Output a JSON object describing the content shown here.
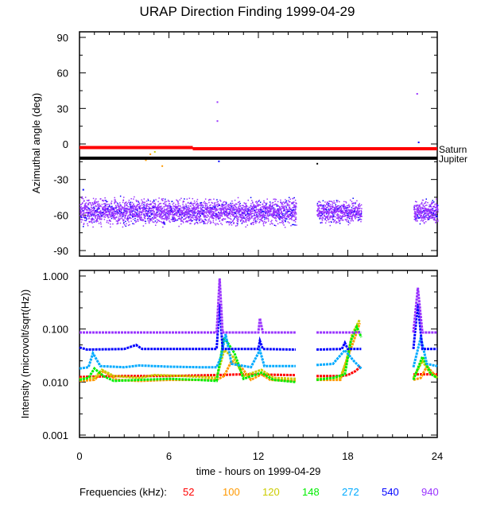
{
  "chart_data": [
    {
      "type": "scatter",
      "title": "URAP Direction Finding  1999-04-29",
      "ylabel": "Azimuthal angle (deg)",
      "xlim": [
        0,
        24
      ],
      "ylim": [
        -90,
        90
      ],
      "yticks": [
        "90",
        "60",
        "30",
        "0",
        "-30",
        "-60",
        "-90"
      ],
      "ytick_values": [
        90,
        60,
        30,
        0,
        -30,
        -60,
        -90
      ],
      "reference_lines": [
        {
          "name": "Saturn",
          "color": "#ff0000",
          "segments": [
            [
              0,
              7.6,
              -3
            ],
            [
              7.6,
              24,
              -4
            ]
          ]
        },
        {
          "name": "Jupiter",
          "color": "#000000",
          "segments": [
            [
              0,
              24,
              -12
            ]
          ]
        }
      ],
      "clusters": [
        {
          "frequency": "940",
          "color": "#9933ff",
          "start": 0,
          "end": 14.5,
          "mean": -57,
          "spread": 7
        },
        {
          "frequency": "940",
          "color": "#9933ff",
          "start": 15.9,
          "end": 18.9,
          "mean": -57,
          "spread": 6
        },
        {
          "frequency": "940",
          "color": "#9933ff",
          "start": 22.4,
          "end": 24,
          "mean": -57,
          "spread": 6
        }
      ],
      "outliers": [
        {
          "x": 9.2,
          "y": 36,
          "color": "#9933ff"
        },
        {
          "x": 9.2,
          "y": 20,
          "color": "#9933ff"
        },
        {
          "x": 9.3,
          "y": -14,
          "color": "#0000ff"
        },
        {
          "x": 22.6,
          "y": 43,
          "color": "#9933ff"
        },
        {
          "x": 22.7,
          "y": 2,
          "color": "#0000ff"
        },
        {
          "x": 4.4,
          "y": -13,
          "color": "#ff9900"
        },
        {
          "x": 4.7,
          "y": -8,
          "color": "#ff9900"
        },
        {
          "x": 5.0,
          "y": -6,
          "color": "#cccc00"
        },
        {
          "x": 5.5,
          "y": -18,
          "color": "#ff9900"
        },
        {
          "x": 15.9,
          "y": -16,
          "color": "#000000"
        },
        {
          "x": 0.2,
          "y": -38,
          "color": "#0000ff"
        }
      ]
    },
    {
      "type": "line",
      "ylabel": "Intensity (microvolt/sqrt(Hz))",
      "xlabel": "time - hours on 1999-04-29",
      "xlim": [
        0,
        24
      ],
      "xticks": [
        "0",
        "6",
        "12",
        "18",
        "24"
      ],
      "xtick_values": [
        0,
        6,
        12,
        18,
        24
      ],
      "yscale": "log",
      "ylim": [
        0.001,
        1.0
      ],
      "yticks": [
        "1.000",
        "0.100",
        "0.010",
        "0.001"
      ],
      "ytick_values": [
        1.0,
        0.1,
        0.01,
        0.001
      ],
      "legend_title": "Frequencies (kHz):",
      "series": [
        {
          "name": "52",
          "color": "#ff0000",
          "points": [
            [
              0,
              0.0125
            ],
            [
              3,
              0.013
            ],
            [
              6,
              0.013
            ],
            [
              9,
              0.0135
            ],
            [
              11,
              0.014
            ],
            [
              14.5,
              0.0135
            ],
            null,
            [
              15.9,
              0.013
            ],
            [
              17.5,
              0.013
            ],
            [
              18.0,
              0.0135
            ],
            [
              18.5,
              0.016
            ],
            [
              18.9,
              0.02
            ],
            null,
            [
              22.4,
              0.014
            ],
            [
              24,
              0.014
            ]
          ]
        },
        {
          "name": "100",
          "color": "#ff9900",
          "points": [
            [
              0,
              0.0105
            ],
            [
              1.0,
              0.011
            ],
            [
              1.6,
              0.016
            ],
            [
              2.5,
              0.011
            ],
            [
              4,
              0.0105
            ],
            [
              6,
              0.011
            ],
            [
              8,
              0.011
            ],
            [
              9.2,
              0.011
            ],
            [
              9.7,
              0.013
            ],
            [
              10.2,
              0.025
            ],
            [
              10.8,
              0.02
            ],
            [
              11.5,
              0.011
            ],
            [
              12.2,
              0.014
            ],
            [
              12.8,
              0.011
            ],
            [
              14.5,
              0.0105
            ],
            null,
            [
              15.9,
              0.011
            ],
            [
              17.5,
              0.011
            ],
            [
              18.0,
              0.03
            ],
            [
              18.4,
              0.06
            ],
            [
              18.8,
              0.13
            ],
            null,
            [
              22.4,
              0.011
            ],
            [
              22.9,
              0.012
            ],
            [
              23.3,
              0.02
            ],
            [
              24,
              0.012
            ]
          ]
        },
        {
          "name": "120",
          "color": "#cccc00",
          "points": [
            [
              0,
              0.0115
            ],
            [
              1.0,
              0.012
            ],
            [
              1.5,
              0.017
            ],
            [
              2.3,
              0.013
            ],
            [
              4,
              0.012
            ],
            [
              5,
              0.0135
            ],
            [
              7,
              0.013
            ],
            [
              9.2,
              0.012
            ],
            [
              9.7,
              0.04
            ],
            [
              10.3,
              0.03
            ],
            [
              11,
              0.013
            ],
            [
              12.2,
              0.017
            ],
            [
              13,
              0.012
            ],
            [
              14.5,
              0.0115
            ],
            null,
            [
              15.9,
              0.0115
            ],
            [
              17.5,
              0.012
            ],
            [
              17.9,
              0.025
            ],
            [
              18.3,
              0.08
            ],
            [
              18.8,
              0.15
            ],
            null,
            [
              22.4,
              0.012
            ],
            [
              23.0,
              0.025
            ],
            [
              23.5,
              0.015
            ],
            [
              24,
              0.012
            ]
          ]
        },
        {
          "name": "148",
          "color": "#00ee00",
          "points": [
            [
              0,
              0.011
            ],
            [
              0.6,
              0.012
            ],
            [
              1.0,
              0.018
            ],
            [
              1.6,
              0.013
            ],
            [
              2.3,
              0.0105
            ],
            [
              4,
              0.011
            ],
            [
              6,
              0.0115
            ],
            [
              8,
              0.011
            ],
            [
              9.2,
              0.0105
            ],
            [
              9.7,
              0.07
            ],
            [
              10.4,
              0.035
            ],
            [
              11,
              0.0115
            ],
            [
              12.2,
              0.015
            ],
            [
              13,
              0.011
            ],
            [
              14.5,
              0.01
            ],
            null,
            [
              15.9,
              0.011
            ],
            [
              17,
              0.012
            ],
            [
              17.8,
              0.014
            ],
            [
              18.2,
              0.06
            ],
            [
              18.6,
              0.11
            ],
            [
              18.9,
              0.07
            ],
            null,
            [
              22.4,
              0.011
            ],
            [
              23.0,
              0.03
            ],
            [
              23.6,
              0.014
            ],
            [
              24,
              0.012
            ]
          ]
        },
        {
          "name": "272",
          "color": "#00aaff",
          "points": [
            [
              0,
              0.018
            ],
            [
              0.6,
              0.019
            ],
            [
              0.9,
              0.035
            ],
            [
              1.4,
              0.02
            ],
            [
              3,
              0.019
            ],
            [
              4,
              0.0205
            ],
            [
              6,
              0.0195
            ],
            [
              8,
              0.019
            ],
            [
              9.2,
              0.019
            ],
            [
              9.5,
              0.03
            ],
            [
              9.8,
              0.08
            ],
            [
              10.2,
              0.022
            ],
            [
              11.5,
              0.019
            ],
            [
              12.1,
              0.04
            ],
            [
              12.4,
              0.02
            ],
            [
              14.5,
              0.02
            ],
            null,
            [
              15.9,
              0.021
            ],
            [
              17,
              0.022
            ],
            [
              17.8,
              0.04
            ],
            [
              18.4,
              0.025
            ],
            [
              18.9,
              0.018
            ],
            null,
            [
              22.4,
              0.019
            ],
            [
              22.9,
              0.07
            ],
            [
              23.3,
              0.022
            ],
            [
              24,
              0.02
            ]
          ]
        },
        {
          "name": "540",
          "color": "#0000ff",
          "points": [
            [
              0,
              0.045
            ],
            [
              0.5,
              0.041
            ],
            [
              3,
              0.042
            ],
            [
              3.8,
              0.05
            ],
            [
              4.2,
              0.042
            ],
            [
              9.2,
              0.042
            ],
            [
              9.4,
              0.3
            ],
            [
              9.6,
              0.042
            ],
            [
              12.0,
              0.042
            ],
            [
              12.1,
              0.06
            ],
            [
              12.3,
              0.042
            ],
            [
              14.5,
              0.041
            ],
            null,
            [
              15.9,
              0.041
            ],
            [
              17.6,
              0.042
            ],
            [
              17.8,
              0.055
            ],
            [
              18.0,
              0.042
            ],
            [
              18.9,
              0.042
            ],
            null,
            [
              22.4,
              0.042
            ],
            [
              22.7,
              0.3
            ],
            [
              23.0,
              0.042
            ],
            [
              24,
              0.042
            ]
          ]
        },
        {
          "name": "940",
          "color": "#9933ff",
          "points": [
            [
              0,
              0.086
            ],
            [
              9.2,
              0.086
            ],
            [
              9.4,
              0.9
            ],
            [
              9.6,
              0.086
            ],
            [
              12.0,
              0.086
            ],
            [
              12.1,
              0.16
            ],
            [
              12.3,
              0.086
            ],
            [
              14.5,
              0.086
            ],
            null,
            [
              15.9,
              0.086
            ],
            [
              18.9,
              0.086
            ],
            null,
            [
              22.4,
              0.086
            ],
            [
              22.7,
              0.6
            ],
            [
              23.0,
              0.086
            ],
            [
              24,
              0.086
            ]
          ]
        }
      ]
    }
  ]
}
